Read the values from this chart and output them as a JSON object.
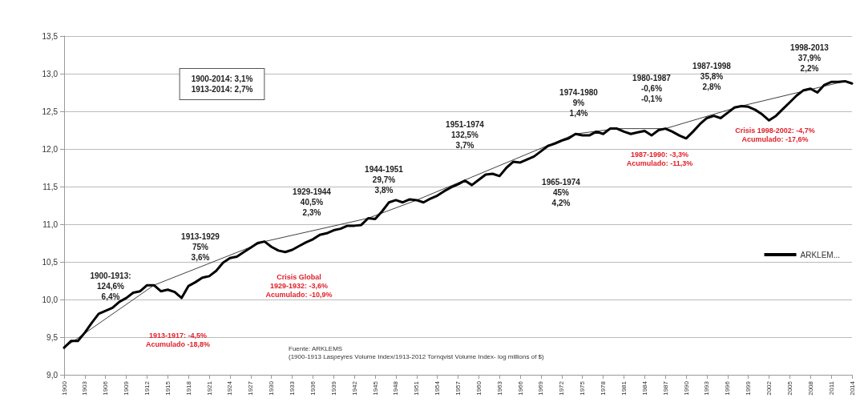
{
  "chart_data": {
    "type": "line",
    "x": [
      1900,
      1901,
      1902,
      1903,
      1904,
      1905,
      1906,
      1907,
      1908,
      1909,
      1910,
      1911,
      1912,
      1913,
      1914,
      1915,
      1916,
      1917,
      1918,
      1919,
      1920,
      1921,
      1922,
      1923,
      1924,
      1925,
      1926,
      1927,
      1928,
      1929,
      1930,
      1931,
      1932,
      1933,
      1934,
      1935,
      1936,
      1937,
      1938,
      1939,
      1940,
      1941,
      1942,
      1943,
      1944,
      1945,
      1946,
      1947,
      1948,
      1949,
      1950,
      1951,
      1952,
      1953,
      1954,
      1955,
      1956,
      1957,
      1958,
      1959,
      1960,
      1961,
      1962,
      1963,
      1964,
      1965,
      1966,
      1967,
      1968,
      1969,
      1970,
      1971,
      1972,
      1973,
      1974,
      1975,
      1976,
      1977,
      1978,
      1979,
      1980,
      1981,
      1982,
      1983,
      1984,
      1985,
      1986,
      1987,
      1988,
      1989,
      1990,
      1991,
      1992,
      1993,
      1994,
      1995,
      1996,
      1997,
      1998,
      1999,
      2000,
      2001,
      2002,
      2003,
      2004,
      2005,
      2006,
      2007,
      2008,
      2009,
      2010,
      2011,
      2012,
      2013,
      2014
    ],
    "series": [
      {
        "name": "ARKLEM...",
        "color": "#000000",
        "values": [
          9.36,
          9.45,
          9.45,
          9.56,
          9.69,
          9.81,
          9.85,
          9.89,
          9.97,
          10.02,
          10.09,
          10.11,
          10.19,
          10.19,
          10.11,
          10.13,
          10.1,
          10.02,
          10.18,
          10.23,
          10.29,
          10.31,
          10.38,
          10.49,
          10.55,
          10.57,
          10.63,
          10.69,
          10.75,
          10.77,
          10.7,
          10.65,
          10.63,
          10.66,
          10.71,
          10.76,
          10.8,
          10.86,
          10.88,
          10.92,
          10.94,
          10.98,
          10.98,
          10.99,
          11.08,
          11.07,
          11.17,
          11.29,
          11.32,
          11.29,
          11.33,
          11.32,
          11.29,
          11.34,
          11.38,
          11.44,
          11.49,
          11.53,
          11.58,
          11.52,
          11.59,
          11.66,
          11.67,
          11.64,
          11.75,
          11.83,
          11.82,
          11.86,
          11.9,
          11.97,
          12.04,
          12.07,
          12.11,
          12.14,
          12.2,
          12.18,
          12.18,
          12.23,
          12.2,
          12.27,
          12.27,
          12.23,
          12.2,
          12.22,
          12.24,
          12.18,
          12.25,
          12.27,
          12.23,
          12.18,
          12.14,
          12.23,
          12.33,
          12.41,
          12.44,
          12.41,
          12.48,
          12.55,
          12.57,
          12.56,
          12.52,
          12.46,
          12.38,
          12.44,
          12.53,
          12.62,
          12.71,
          12.78,
          12.8,
          12.75,
          12.85,
          12.89,
          12.89,
          12.9,
          12.87
        ]
      },
      {
        "color": "#404040",
        "x": [
          1900,
          1913,
          1929,
          1944,
          1951,
          1974,
          1980,
          1987,
          1998,
          2013
        ],
        "values": [
          9.36,
          10.19,
          10.77,
          11.08,
          11.32,
          12.2,
          12.27,
          12.27,
          12.57,
          12.9
        ]
      }
    ],
    "xlim": [
      1900,
      2014
    ],
    "xticks": [
      1900,
      1903,
      1906,
      1909,
      1912,
      1915,
      1918,
      1921,
      1924,
      1927,
      1930,
      1933,
      1936,
      1939,
      1942,
      1945,
      1948,
      1951,
      1954,
      1957,
      1960,
      1963,
      1966,
      1969,
      1972,
      1975,
      1978,
      1981,
      1984,
      1987,
      1990,
      1993,
      1996,
      1999,
      2002,
      2005,
      2008,
      2011,
      2014
    ],
    "ylim": [
      9.0,
      13.5
    ],
    "yticks": [
      {
        "value": 9.0,
        "label": "9,0"
      },
      {
        "value": 9.5,
        "label": "9,5"
      },
      {
        "value": 10.0,
        "label": "10,0"
      },
      {
        "value": 10.5,
        "label": "10,5"
      },
      {
        "value": 11.0,
        "label": "11,0"
      },
      {
        "value": 11.5,
        "label": "11,5"
      },
      {
        "value": 12.0,
        "label": "12,0"
      },
      {
        "value": 12.5,
        "label": "12,5"
      },
      {
        "value": 13.0,
        "label": "13,0"
      },
      {
        "value": 13.5,
        "label": "13,5"
      }
    ],
    "grid": "y",
    "legend": "right",
    "marker": "none",
    "annotations": [
      "1900-1913:\n124,6%\n6,4%",
      "1913-1929\n75%\n3,6%",
      "1913-1917: -4,5%\nAcumulado -18,8%",
      "Crisis Global\n1929-1932: -3,6%\nAcumulado: -10,9%",
      "1929-1944\n40,5%\n2,3%",
      "1944-1951\n29,7%\n3,8%",
      "1951-1974\n132,5%\n3,7%",
      "1965-1974\n45%\n4,2%",
      "1974-1980\n9%\n1,4%",
      "1980-1987\n-0,6%\n-0,1%",
      "1987-1998\n35,8%\n2,8%",
      "1998-2013\n37,9%\n2,2%",
      "1987-1990: -3,3%\nAcumulado: -11,3%",
      "Crisis 1998-2002: -4,7%\nAcumulado: -17,6%",
      "1900-2014: 3,1%\n1913-2014: 2,7%",
      "Fuente: ARKLEMS\n(1900-1913 Laspeyres Volume Index/1913-2012 Tornqvist Volume Index- log millions of $)"
    ]
  }
}
